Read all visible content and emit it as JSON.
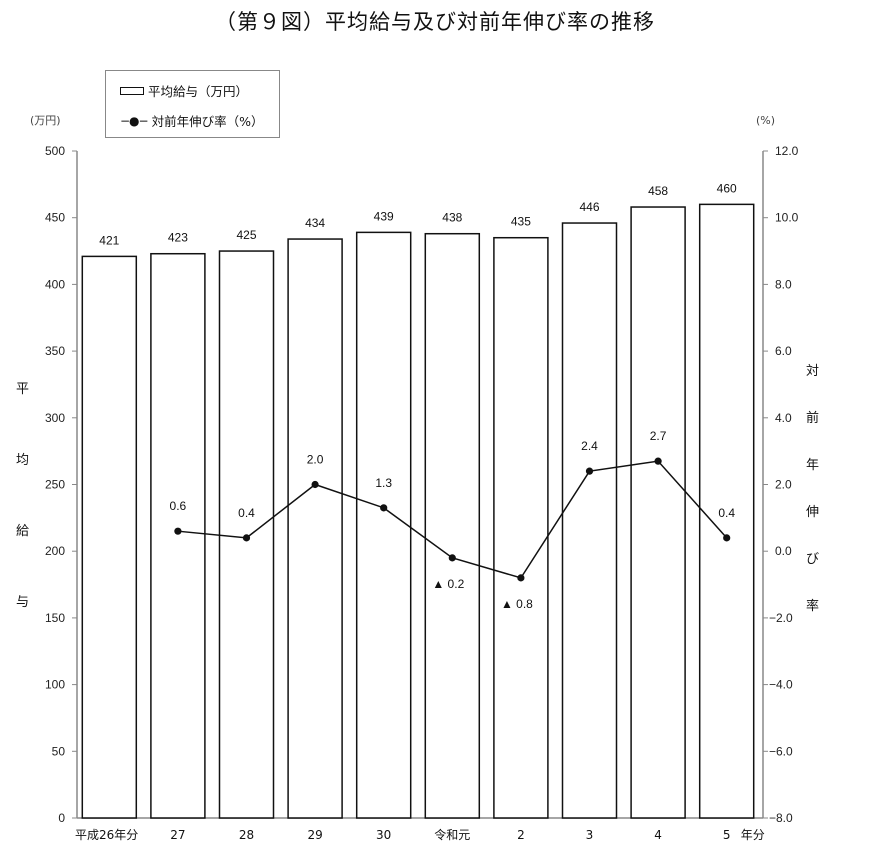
{
  "title": "（第９図）平均給与及び対前年伸び率の推移",
  "legend": {
    "bar_label": "平均給与（万円）",
    "line_marker": "−●−",
    "line_label": "対前年伸び率（%）"
  },
  "left_axis": {
    "unit": "(万円)",
    "title_chars": [
      "平",
      "均",
      "給",
      "与"
    ]
  },
  "right_axis": {
    "unit": "(%)",
    "title_chars": [
      "対",
      "前",
      "年",
      "伸",
      "び",
      "率"
    ]
  },
  "colors": {
    "bar_fill": "#ffffff",
    "bar_stroke": "#111111",
    "line": "#111111",
    "axis": "#888888"
  },
  "chart_data": {
    "type": "bar+line",
    "title": "（第９図）平均給与及び対前年伸び率の推移",
    "categories": [
      "平成26年分",
      "27",
      "28",
      "29",
      "30",
      "令和元",
      "2",
      "3",
      "4",
      "5 年分"
    ],
    "series": [
      {
        "name": "平均給与（万円）",
        "type": "bar",
        "axis": "left",
        "values": [
          421,
          423,
          425,
          434,
          439,
          438,
          435,
          446,
          458,
          460
        ],
        "labels": [
          "421",
          "423",
          "425",
          "434",
          "439",
          "438",
          "435",
          "446",
          "458",
          "460"
        ]
      },
      {
        "name": "対前年伸び率（%）",
        "type": "line",
        "axis": "right",
        "values": [
          null,
          0.6,
          0.4,
          2.0,
          1.3,
          -0.2,
          -0.8,
          2.4,
          2.7,
          0.4
        ],
        "labels": [
          "",
          "0.6",
          "0.4",
          "2.0",
          "1.3",
          "▲ 0.2",
          "▲ 0.8",
          "2.4",
          "2.7",
          "0.4"
        ]
      }
    ],
    "ylabel_left": "平均給与 (万円)",
    "ylabel_right": "対前年伸び率 (%)",
    "ylim_left": [
      0,
      500
    ],
    "yticks_left": [
      "0",
      "50",
      "100",
      "150",
      "200",
      "250",
      "300",
      "350",
      "400",
      "450",
      "500"
    ],
    "ylim_right": [
      -8.0,
      12.0
    ],
    "yticks_right": [
      "-8.0",
      "-6.0",
      "-4.0",
      "-2.0",
      "0.0",
      "2.0",
      "4.0",
      "6.0",
      "8.0",
      "10.0",
      "12.0"
    ],
    "grid": false,
    "legend_position": "top-left"
  }
}
